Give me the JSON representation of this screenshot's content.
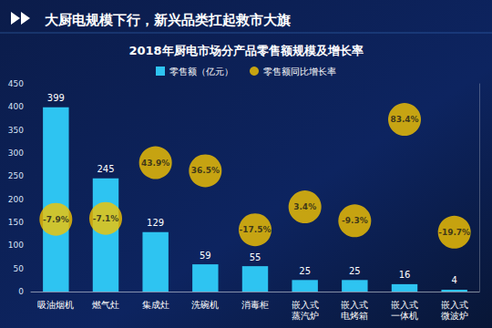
{
  "header": "大厨电规模下行，新兴品类扛起救市大旗",
  "chart_data": {
    "type": "bar",
    "title": "2018年厨电市场分产品零售额规模及增长率",
    "categories": [
      "吸油烟机",
      "燃气灶",
      "集成灶",
      "洗碗机",
      "消毒柜",
      "嵌入式蒸汽炉",
      "嵌入式电烤箱",
      "嵌入式一体机",
      "嵌入式微波炉"
    ],
    "series": [
      {
        "name": "零售额（亿元）",
        "type": "bar",
        "color": "#2ec4f1",
        "values": [
          399,
          245,
          129,
          59,
          55,
          25,
          25,
          16,
          4
        ]
      },
      {
        "name": "零售额同比增长率",
        "type": "scatter",
        "marker": "circle",
        "color": "#f5c400",
        "axis": "y2",
        "values": [
          -7.9,
          -7.1,
          43.9,
          36.5,
          -17.5,
          3.4,
          -9.3,
          83.4,
          -19.7
        ],
        "value_labels": [
          "-7.9%",
          "-7.1%",
          "43.9%",
          "36.5%",
          "-17.5%",
          "3.4%",
          "-9.3%",
          "83.4%",
          "-19.7%"
        ]
      }
    ],
    "ylim": [
      0,
      450
    ],
    "yticks": [
      0,
      50,
      100,
      150,
      200,
      250,
      300,
      350,
      400,
      450
    ],
    "y2lim": [
      -74,
      116
    ],
    "grid": false,
    "legend": "top",
    "data_labels": true
  }
}
